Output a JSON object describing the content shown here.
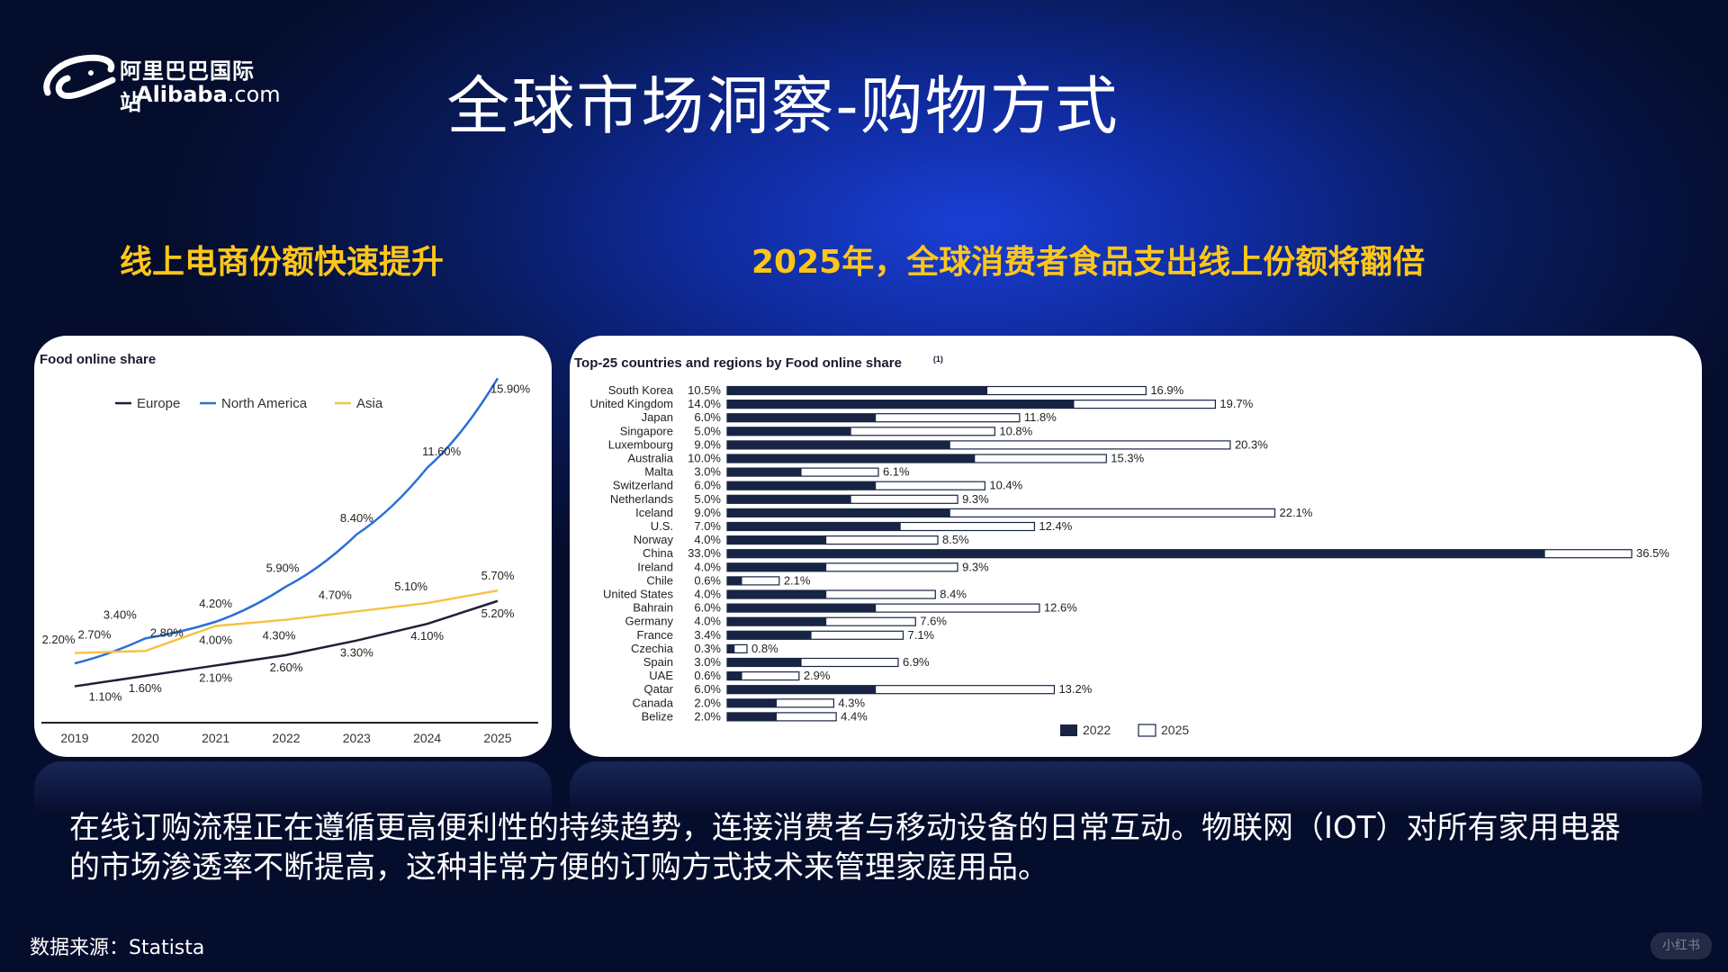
{
  "logo": {
    "cn": "阿里巴巴国际站",
    "en_bold": "Alibaba",
    "en_suffix": ".com"
  },
  "title": "全球市场洞察-购物方式",
  "subtitle_left": "线上电商份额快速提升",
  "subtitle_right": "2025年，全球消费者食品支出线上份额将翻倍",
  "description": "在线订购流程正在遵循更高便利性的持续趋势，连接消费者与移动设备的日常互动。物联网（IOT）对所有家用电器的市场渗透率不断提高，这种非常方便的订购方式技术来管理家庭用品。",
  "source": "数据来源：Statista",
  "watermark": "小红书",
  "colors": {
    "europe": "#1b2233",
    "north_america": "#2a6fd6",
    "asia": "#f5c342",
    "bar2022": "#182444",
    "accent": "#ffc61a"
  },
  "chart_data": [
    {
      "type": "line",
      "title": "Food online share",
      "x": [
        "2019",
        "2020",
        "2021",
        "2022",
        "2023",
        "2024",
        "2025"
      ],
      "ylim": [
        0,
        16
      ],
      "legend_position": "top",
      "series": [
        {
          "name": "Europe",
          "values": [
            1.1,
            1.6,
            2.1,
            2.6,
            3.3,
            4.1,
            5.2
          ],
          "labels": [
            "1.10%",
            "1.60%",
            "2.10%",
            "2.60%",
            "3.30%",
            "4.10%",
            "5.20%"
          ]
        },
        {
          "name": "North America",
          "values": [
            2.2,
            3.4,
            4.2,
            5.9,
            8.4,
            11.6,
            15.9
          ],
          "labels": [
            "2.20%",
            "3.40%",
            "4.20%",
            "5.90%",
            "8.40%",
            "11.60%",
            "15.90%"
          ]
        },
        {
          "name": "Asia",
          "values": [
            2.7,
            2.8,
            4.0,
            4.3,
            4.7,
            5.1,
            5.7
          ],
          "labels": [
            "2.70%",
            "2.80%",
            "4.00%",
            "4.30%",
            "4.70%",
            "5.10%",
            "5.70%"
          ]
        }
      ]
    },
    {
      "type": "bar",
      "orientation": "horizontal",
      "title": "Top-25 countries and regions by Food online share",
      "title_note": "(1)",
      "categories": [
        "South Korea",
        "United Kingdom",
        "Japan",
        "Singapore",
        "Luxembourg",
        "Australia",
        "Malta",
        "Switzerland",
        "Netherlands",
        "Iceland",
        "U.S.",
        "Norway",
        "China",
        "Ireland",
        "Chile",
        "United States",
        "Bahrain",
        "Germany",
        "France",
        "Czechia",
        "Spain",
        "UAE",
        "Qatar",
        "Canada",
        "Belize"
      ],
      "series": [
        {
          "name": "2022",
          "values": [
            10.5,
            14.0,
            6.0,
            5.0,
            9.0,
            10.0,
            3.0,
            6.0,
            5.0,
            9.0,
            7.0,
            4.0,
            33.0,
            4.0,
            0.6,
            4.0,
            6.0,
            4.0,
            3.4,
            0.3,
            3.0,
            0.6,
            6.0,
            2.0,
            2.0
          ],
          "labels": [
            "10.5%",
            "14.0%",
            "6.0%",
            "5.0%",
            "9.0%",
            "10.0%",
            "3.0%",
            "6.0%",
            "5.0%",
            "9.0%",
            "7.0%",
            "4.0%",
            "33.0%",
            "4.0%",
            "0.6%",
            "4.0%",
            "6.0%",
            "4.0%",
            "3.4%",
            "0.3%",
            "3.0%",
            "0.6%",
            "6.0%",
            "2.0%",
            "2.0%"
          ]
        },
        {
          "name": "2025",
          "values": [
            16.9,
            19.7,
            11.8,
            10.8,
            20.3,
            15.3,
            6.1,
            10.4,
            9.3,
            22.1,
            12.4,
            8.5,
            36.5,
            9.3,
            2.1,
            8.4,
            12.6,
            7.6,
            7.1,
            0.8,
            6.9,
            2.9,
            13.2,
            4.3,
            4.4
          ],
          "labels": [
            "16.9%",
            "19.7%",
            "11.8%",
            "10.8%",
            "20.3%",
            "15.3%",
            "6.1%",
            "10.4%",
            "9.3%",
            "22.1%",
            "12.4%",
            "8.5%",
            "36.5%",
            "9.3%",
            "2.1%",
            "8.4%",
            "12.6%",
            "7.6%",
            "7.1%",
            "0.8%",
            "6.9%",
            "2.9%",
            "13.2%",
            "4.3%",
            "4.4%"
          ]
        }
      ],
      "xlim": [
        0,
        36.5
      ],
      "legend_position": "bottom"
    }
  ]
}
